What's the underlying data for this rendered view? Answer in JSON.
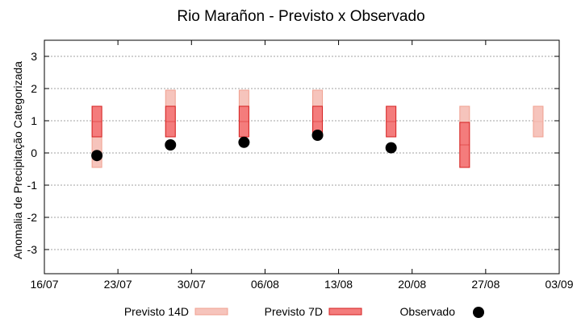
{
  "chart_data": {
    "type": "floating-bar-with-points",
    "title": "Rio Marañon - Previsto x Observado",
    "ylabel": "Anomalia de Precipitação Categorizada",
    "xlabel": "",
    "ylim": [
      -3.75,
      3.5
    ],
    "yticks": [
      -3,
      -2,
      -1,
      0,
      1,
      2,
      3
    ],
    "xlim": [
      "2024-07-16",
      "2024-09-03"
    ],
    "xticks": [
      {
        "date": "2024-07-16",
        "label": "16/07"
      },
      {
        "date": "2024-07-23",
        "label": "23/07"
      },
      {
        "date": "2024-07-30",
        "label": "30/07"
      },
      {
        "date": "2024-08-06",
        "label": "06/08"
      },
      {
        "date": "2024-08-13",
        "label": "13/08"
      },
      {
        "date": "2024-08-20",
        "label": "20/08"
      },
      {
        "date": "2024-08-27",
        "label": "27/08"
      },
      {
        "date": "2024-09-03",
        "label": "03/09"
      }
    ],
    "grid": true,
    "legend_position": "bottom",
    "series": [
      {
        "name": "Previsto 14D",
        "color": "#f6c4bc",
        "border": "#f0a090",
        "bars": [
          {
            "date": "2024-07-21",
            "low": -0.45,
            "high": 1.45
          },
          {
            "date": "2024-07-28",
            "low": 0.5,
            "high": 1.95
          },
          {
            "date": "2024-08-04",
            "low": 0.5,
            "high": 1.95
          },
          {
            "date": "2024-08-11",
            "low": 0.5,
            "high": 1.95
          },
          {
            "date": "2024-08-25",
            "low": -0.45,
            "high": 1.45
          },
          {
            "date": "2024-09-01",
            "low": 0.5,
            "high": 1.45
          }
        ]
      },
      {
        "name": "Previsto 7D",
        "color": "#f47c7c",
        "border": "#d42020",
        "bars": [
          {
            "date": "2024-07-21",
            "low": 0.5,
            "high": 1.45
          },
          {
            "date": "2024-07-28",
            "low": 0.5,
            "high": 1.45
          },
          {
            "date": "2024-08-04",
            "low": 0.5,
            "high": 1.45
          },
          {
            "date": "2024-08-11",
            "low": 0.5,
            "high": 1.45
          },
          {
            "date": "2024-08-18",
            "low": 0.5,
            "high": 1.45
          },
          {
            "date": "2024-08-25",
            "low": -0.45,
            "high": 0.95
          }
        ]
      },
      {
        "name": "Observado",
        "color": "#000000",
        "points": [
          {
            "date": "2024-07-21",
            "value": -0.08
          },
          {
            "date": "2024-07-28",
            "value": 0.25
          },
          {
            "date": "2024-08-04",
            "value": 0.33
          },
          {
            "date": "2024-08-11",
            "value": 0.55
          },
          {
            "date": "2024-08-18",
            "value": 0.16
          }
        ]
      }
    ]
  }
}
